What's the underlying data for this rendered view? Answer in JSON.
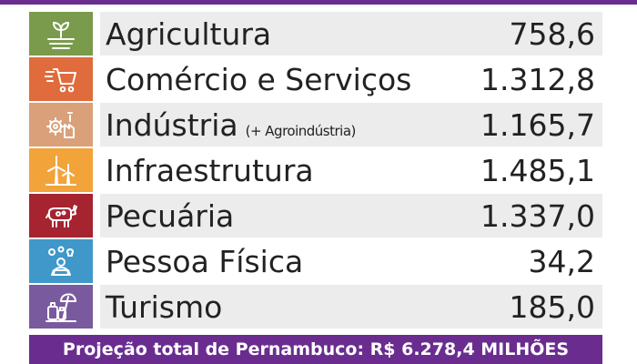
{
  "chart_data": {
    "type": "table",
    "rows": [
      {
        "category": "Agricultura",
        "note": "",
        "value": 758.6,
        "display": "758,6",
        "icon": "farm-plant-icon",
        "color": "#7a9a4c"
      },
      {
        "category": "Comércio e Serviços",
        "note": "",
        "value": 1312.8,
        "display": "1.312,8",
        "icon": "shopping-cart-icon",
        "color": "#e06b3c"
      },
      {
        "category": "Indústria",
        "note": "(+ Agroindústria)",
        "value": 1165.7,
        "display": "1.165,7",
        "icon": "factory-gear-icon",
        "color": "#d9a07a"
      },
      {
        "category": "Infraestrutura",
        "note": "",
        "value": 1485.1,
        "display": "1.485,1",
        "icon": "wind-turbine-icon",
        "color": "#f2a33a"
      },
      {
        "category": "Pecuária",
        "note": "",
        "value": 1337.0,
        "display": "1.337,0",
        "icon": "cow-icon",
        "color": "#a52430"
      },
      {
        "category": "Pessoa Física",
        "note": "",
        "value": 34.2,
        "display": "34,2",
        "icon": "person-ideas-icon",
        "color": "#3f98c9"
      },
      {
        "category": "Turismo",
        "note": "",
        "value": 185.0,
        "display": "185,0",
        "icon": "luggage-umbrella-icon",
        "color": "#7a5a9e"
      }
    ],
    "total_label": "Projeção total de Pernambuco: R$ 6.278,4 MILHÕES"
  },
  "colors": {
    "accent": "#6a2d8f",
    "row_shade": "#ececec"
  }
}
